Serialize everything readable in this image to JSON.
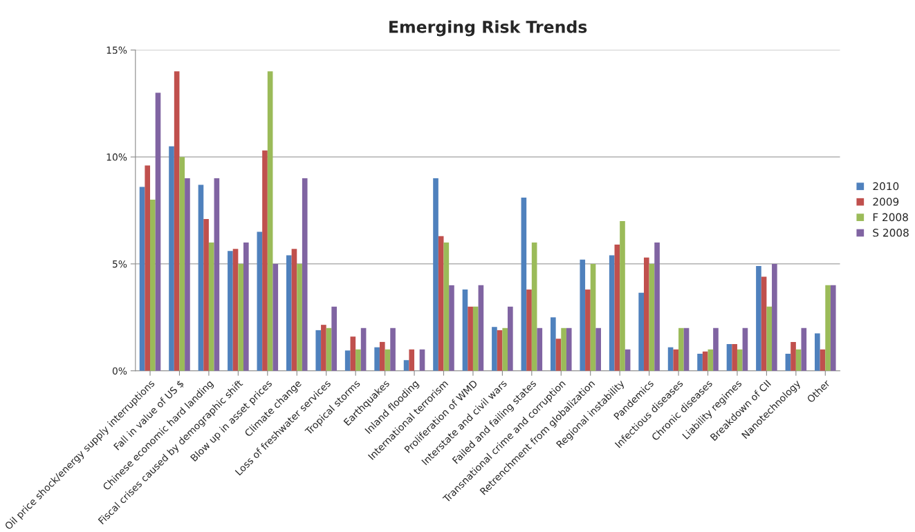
{
  "chart_data": {
    "type": "bar",
    "title": "Emerging Risk Trends",
    "categories": [
      "Oil price shock/energy supply interruptions",
      "Fall in value of US $",
      "Chinese economic hard landing",
      "Fiscal crises caused by demographic shift",
      "Blow up in asset prices",
      "Climate change",
      "Loss of freshwater services",
      "Tropical storms",
      "Earthquakes",
      "Inland flooding",
      "International terrorism",
      "Proliferation of WMD",
      "Interstate and civil wars",
      "Failed and failing states",
      "Transnational crime and corruption",
      "Retrenchment from globalization",
      "Regional instability",
      "Pandemics",
      "Infectious diseases",
      "Chronic diseases",
      "Liability regimes",
      "Breakdown of CII",
      "Nanotechnology",
      "Other"
    ],
    "series": [
      {
        "name": "2010",
        "color": "#4f81bd",
        "values": [
          8.6,
          10.5,
          8.7,
          5.6,
          6.5,
          5.4,
          1.9,
          0.95,
          1.1,
          0.5,
          9.0,
          3.8,
          2.05,
          8.1,
          2.5,
          5.2,
          5.4,
          3.65,
          1.1,
          0.8,
          1.25,
          4.9,
          0.8,
          1.75
        ]
      },
      {
        "name": "2009",
        "color": "#c0504d",
        "values": [
          9.6,
          14,
          7.1,
          5.7,
          10.3,
          5.7,
          2.15,
          1.6,
          1.35,
          1.0,
          6.3,
          3.0,
          1.9,
          3.8,
          1.5,
          3.8,
          5.9,
          5.3,
          1.0,
          0.9,
          1.25,
          4.4,
          1.35,
          1.0
        ]
      },
      {
        "name": "F 2008",
        "color": "#9bbb59",
        "values": [
          8,
          10,
          6,
          5,
          14,
          5,
          2,
          1,
          1,
          null,
          6,
          3,
          2,
          6,
          2,
          5,
          7,
          5,
          2,
          1,
          1,
          3,
          1,
          4
        ]
      },
      {
        "name": "S 2008",
        "color": "#8064a2",
        "values": [
          13,
          9,
          9,
          6,
          5,
          9,
          3,
          2,
          2,
          1,
          4,
          4,
          3,
          2,
          2,
          2,
          1,
          6,
          2,
          2,
          2,
          5,
          2,
          4
        ]
      }
    ],
    "ylim": [
      0,
      15
    ],
    "yticks": [
      {
        "value": 0,
        "label": "0%"
      },
      {
        "value": 5,
        "label": "5%"
      },
      {
        "value": 10,
        "label": "10%"
      },
      {
        "value": 15,
        "label": "15%"
      }
    ],
    "grid": "y",
    "legend": "right"
  }
}
